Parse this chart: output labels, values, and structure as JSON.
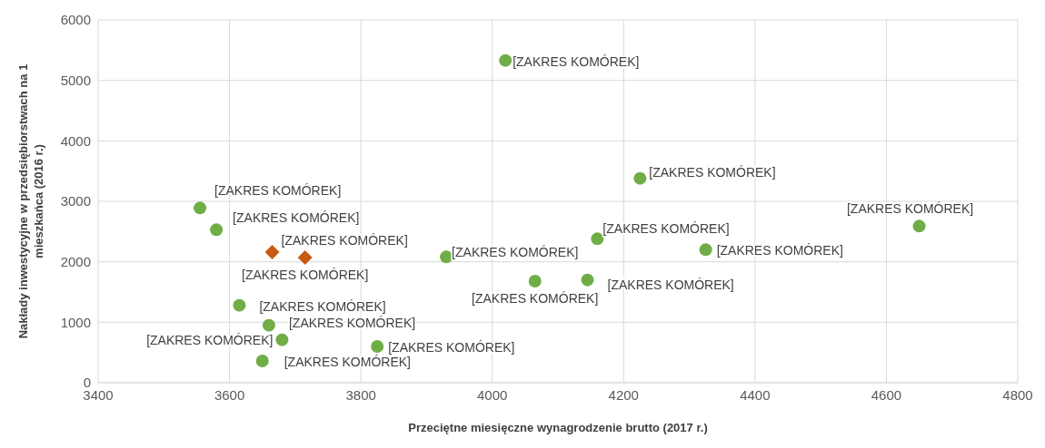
{
  "chart_data": {
    "type": "scatter",
    "xlabel": "Przeciętne miesięczne wynagrodzenie brutto (2017 r.)",
    "ylabel": "Nakłady inwestycyjne w przedsiębiorstwach na 1 mieszkańca (2016 r.)",
    "xlim": [
      3400,
      4800
    ],
    "xticks": [
      3400,
      3600,
      3800,
      4000,
      4200,
      4400,
      4600,
      4800
    ],
    "ylim": [
      0,
      6000
    ],
    "yticks": [
      0,
      1000,
      2000,
      3000,
      4000,
      5000,
      6000
    ],
    "grid": true,
    "series": [
      {
        "color": "#70ad47",
        "marker": "circle",
        "x": [
          4020,
          4225,
          3555,
          3580,
          3615,
          3660,
          3680,
          3650,
          3825,
          3930,
          4065,
          4145,
          4160,
          4325,
          4650
        ],
        "values": [
          5330,
          3380,
          2890,
          2530,
          1280,
          950,
          710,
          360,
          600,
          2080,
          1680,
          1700,
          2380,
          2200,
          2590
        ]
      },
      {
        "color": "#c55a11",
        "marker": "diamond",
        "x": [
          3665,
          3715
        ],
        "values": [
          2160,
          2070
        ]
      }
    ],
    "annotations": [
      {
        "text": "[ZAKRES KOMÓREK]",
        "x": 4020,
        "y": 5330
      },
      {
        "text": "[ZAKRES KOMÓREK]",
        "x": 4225,
        "y": 3380
      },
      {
        "text": "[ZAKRES KOMÓREK]",
        "x": 3555,
        "y": 2890
      },
      {
        "text": "[ZAKRES KOMÓREK]",
        "x": 3580,
        "y": 2530
      },
      {
        "text": "[ZAKRES KOMÓREK]",
        "x": 3615,
        "y": 1280
      },
      {
        "text": "[ZAKRES KOMÓREK]",
        "x": 3660,
        "y": 950
      },
      {
        "text": "[ZAKRES KOMÓREK]",
        "x": 3680,
        "y": 710
      },
      {
        "text": "[ZAKRES KOMÓREK]",
        "x": 3650,
        "y": 360
      },
      {
        "text": "[ZAKRES KOMÓREK]",
        "x": 3825,
        "y": 600
      },
      {
        "text": "[ZAKRES KOMÓREK]",
        "x": 3930,
        "y": 2080
      },
      {
        "text": "[ZAKRES KOMÓREK]",
        "x": 4065,
        "y": 1680
      },
      {
        "text": "[ZAKRES KOMÓREK]",
        "x": 4145,
        "y": 1700
      },
      {
        "text": "[ZAKRES KOMÓREK]",
        "x": 4160,
        "y": 2380
      },
      {
        "text": "[ZAKRES KOMÓREK]",
        "x": 4325,
        "y": 2200
      },
      {
        "text": "[ZAKRES KOMÓREK]",
        "x": 4650,
        "y": 2590
      },
      {
        "text": "[ZAKRES KOMÓREK]",
        "x": 3665,
        "y": 2160
      },
      {
        "text": "[ZAKRES KOMÓREK]",
        "x": 3715,
        "y": 2070
      }
    ]
  }
}
